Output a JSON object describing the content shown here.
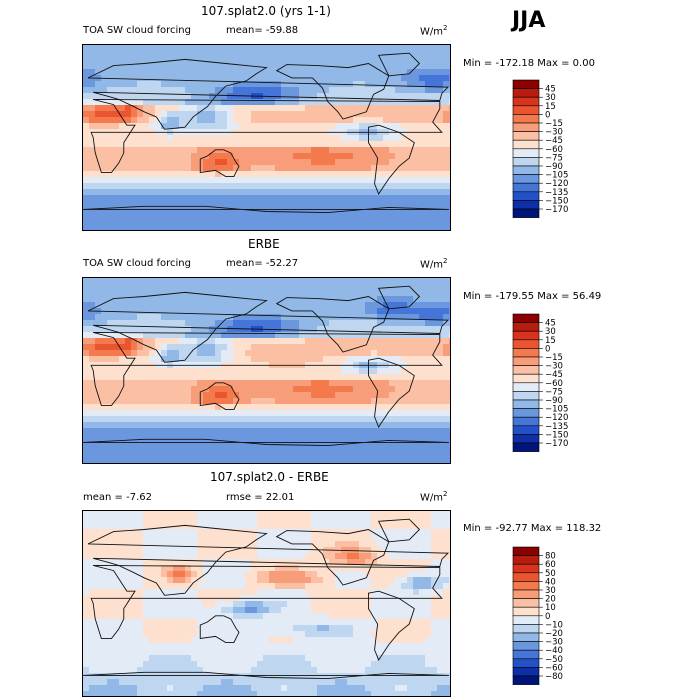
{
  "season": "JJA",
  "units_base": "W/m",
  "units_exp": "2",
  "panels": [
    {
      "title": "107.splat2.0 (yrs 1-1)",
      "left_label": "TOA SW cloud forcing",
      "mid_label": "mean= -59.88",
      "minmax": "Min = -172.18 Max =    0.00"
    },
    {
      "title": "ERBE",
      "left_label": "TOA SW cloud forcing",
      "mid_label": "mean= -52.27",
      "minmax": "Min = -179.55 Max =  56.49"
    },
    {
      "title": "107.splat2.0 - ERBE",
      "left_label": "mean =   -7.62",
      "mid_label": "rmse =  22.01",
      "minmax": "Min = -92.77 Max = 118.32"
    }
  ],
  "chart_data": [
    {
      "type": "heatmap",
      "title": "107.splat2.0 (yrs 1-1)",
      "field": "TOA SW cloud forcing",
      "units": "W/m2",
      "mean": -59.88,
      "min": -172.18,
      "max": 0.0,
      "contour_levels": [
        45,
        30,
        15,
        0,
        -15,
        -30,
        -45,
        -60,
        -75,
        -90,
        -105,
        -120,
        -135,
        -150,
        -170
      ],
      "colors": [
        "#8b0000",
        "#b81c0e",
        "#d8341d",
        "#ea5530",
        "#f47a4e",
        "#f89d79",
        "#fbc0a3",
        "#fde0ce",
        "#e3ecf6",
        "#bed6ef",
        "#92b8e8",
        "#6b97df",
        "#4575d8",
        "#2251c8",
        "#0d2fa8",
        "#00157a"
      ]
    },
    {
      "type": "heatmap",
      "title": "ERBE",
      "field": "TOA SW cloud forcing",
      "units": "W/m2",
      "mean": -52.27,
      "min": -179.55,
      "max": 56.49,
      "contour_levels": [
        45,
        30,
        15,
        0,
        -15,
        -30,
        -45,
        -60,
        -75,
        -90,
        -105,
        -120,
        -135,
        -150,
        -170
      ],
      "colors": [
        "#8b0000",
        "#b81c0e",
        "#d8341d",
        "#ea5530",
        "#f47a4e",
        "#f89d79",
        "#fbc0a3",
        "#fde0ce",
        "#e3ecf6",
        "#bed6ef",
        "#92b8e8",
        "#6b97df",
        "#4575d8",
        "#2251c8",
        "#0d2fa8",
        "#00157a"
      ]
    },
    {
      "type": "heatmap",
      "title": "107.splat2.0 - ERBE",
      "units": "W/m2",
      "mean": -7.62,
      "rmse": 22.01,
      "min": -92.77,
      "max": 118.32,
      "contour_levels": [
        80,
        60,
        50,
        40,
        30,
        20,
        10,
        0,
        -10,
        -20,
        -30,
        -40,
        -50,
        -60,
        -80
      ],
      "colors": [
        "#8b0000",
        "#b81c0e",
        "#d8341d",
        "#ea5530",
        "#f47a4e",
        "#f89d79",
        "#fbc0a3",
        "#fde0ce",
        "#e3ecf6",
        "#bed6ef",
        "#92b8e8",
        "#6b97df",
        "#4575d8",
        "#2251c8",
        "#0d2fa8",
        "#00157a"
      ]
    }
  ]
}
